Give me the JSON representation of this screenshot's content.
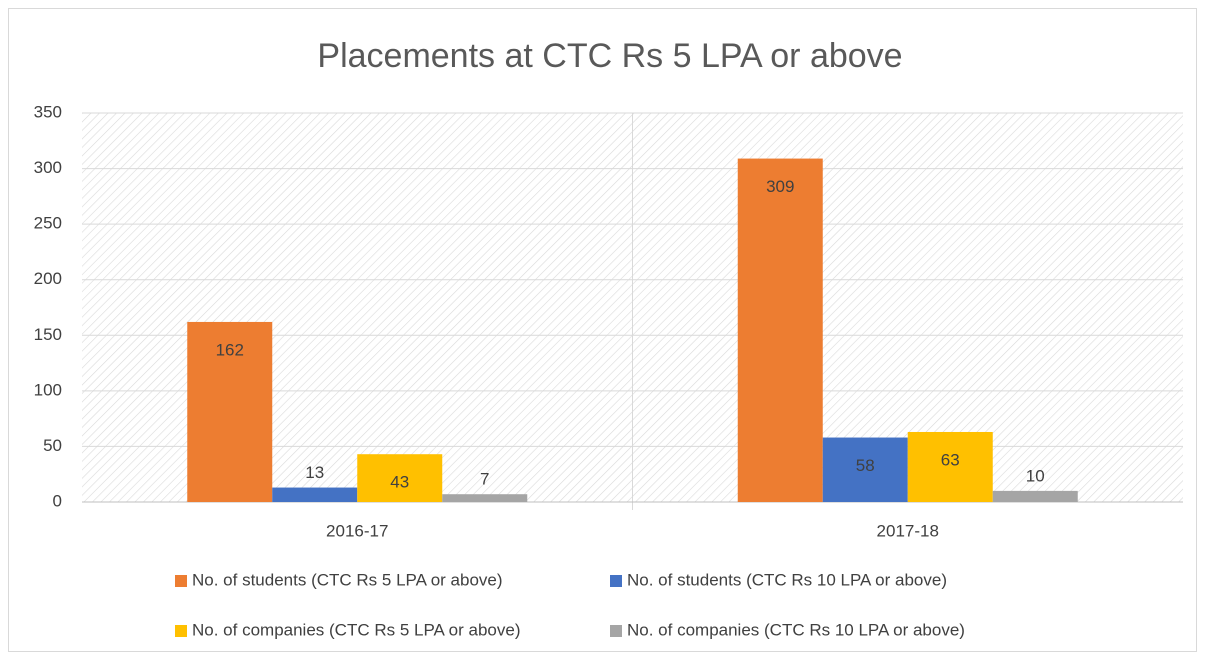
{
  "chart_data": {
    "type": "bar",
    "title": "Placements at CTC Rs 5 LPA or above",
    "categories": [
      "2016-17",
      "2017-18"
    ],
    "series": [
      {
        "name": "No. of students (CTC Rs 5 LPA or above)",
        "color": "#ed7d31",
        "values": [
          162,
          309
        ]
      },
      {
        "name": "No. of students (CTC Rs 10 LPA or above)",
        "color": "#4472c4",
        "values": [
          13,
          58
        ]
      },
      {
        "name": "No. of companies (CTC Rs 5 LPA or above)",
        "color": "#ffc000",
        "values": [
          43,
          63
        ]
      },
      {
        "name": "No. of companies (CTC Rs 10 LPA or above)",
        "color": "#a5a5a5",
        "values": [
          7,
          10
        ]
      }
    ],
    "ylim": [
      0,
      350
    ],
    "yticks": [
      0,
      50,
      100,
      150,
      200,
      250,
      300,
      350
    ],
    "grid": true,
    "legend": "bottom"
  }
}
